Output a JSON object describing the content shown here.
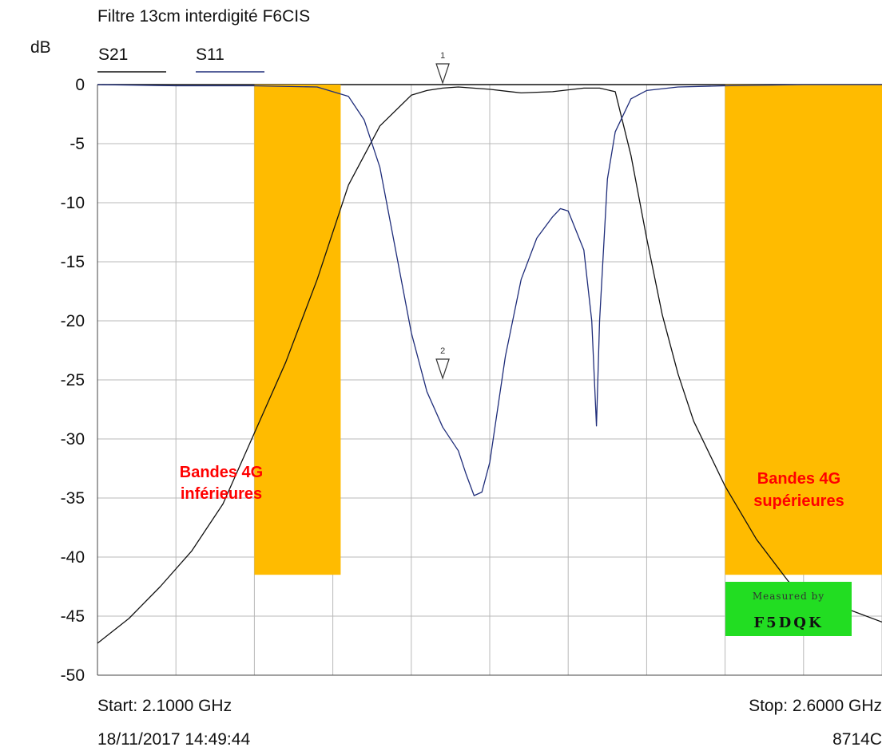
{
  "chart_data": {
    "type": "line",
    "title": "Filtre 13cm interdigité F6CIS",
    "ylabel": "dB",
    "xlabel": "",
    "xlim": [
      2.1,
      2.6
    ],
    "ylim": [
      -50,
      0
    ],
    "y_ticks": [
      0,
      -5,
      -10,
      -15,
      -20,
      -25,
      -30,
      -35,
      -40,
      -45,
      -50
    ],
    "y_tick_labels": [
      "0",
      "-5",
      "-10",
      "-15",
      "-20",
      "-25",
      "-30",
      "-35",
      "-40",
      "-45",
      "-50"
    ],
    "grid": true,
    "legend_position": "top-left",
    "series": [
      {
        "name": "S21",
        "color": "#111111",
        "x": [
          2.1,
          2.12,
          2.14,
          2.16,
          2.18,
          2.2,
          2.22,
          2.24,
          2.26,
          2.28,
          2.3,
          2.31,
          2.32,
          2.33,
          2.35,
          2.37,
          2.39,
          2.41,
          2.42,
          2.43,
          2.44,
          2.45,
          2.46,
          2.47,
          2.48,
          2.5,
          2.52,
          2.54,
          2.55,
          2.56,
          2.58,
          2.6
        ],
        "y": [
          -47.3,
          -45.2,
          -42.5,
          -39.5,
          -35.5,
          -29.5,
          -23.5,
          -16.5,
          -8.5,
          -3.5,
          -0.9,
          -0.5,
          -0.3,
          -0.2,
          -0.4,
          -0.7,
          -0.6,
          -0.3,
          -0.3,
          -0.6,
          -6.0,
          -13.0,
          -19.5,
          -24.5,
          -28.5,
          -34.0,
          -38.5,
          -42.0,
          -43.5,
          -44.5,
          -44.5,
          -45.5
        ]
      },
      {
        "name": "S11",
        "color": "#1f2d7a",
        "x": [
          2.1,
          2.15,
          2.2,
          2.24,
          2.26,
          2.27,
          2.28,
          2.29,
          2.3,
          2.31,
          2.32,
          2.33,
          2.335,
          2.34,
          2.345,
          2.35,
          2.36,
          2.37,
          2.38,
          2.39,
          2.395,
          2.4,
          2.41,
          2.415,
          2.418,
          2.42,
          2.425,
          2.43,
          2.44,
          2.45,
          2.47,
          2.5,
          2.55,
          2.6
        ],
        "y": [
          0,
          -0.1,
          -0.1,
          -0.2,
          -1.0,
          -3.0,
          -7.0,
          -14.0,
          -21.0,
          -26.0,
          -29.0,
          -31.0,
          -33.0,
          -34.8,
          -34.5,
          -32.0,
          -23.0,
          -16.5,
          -13.0,
          -11.2,
          -10.5,
          -10.7,
          -14.0,
          -20.0,
          -28.9,
          -20.0,
          -8.0,
          -4.0,
          -1.2,
          -0.5,
          -0.2,
          -0.1,
          0,
          0
        ]
      }
    ],
    "markers": [
      {
        "label": "1",
        "x": 2.32,
        "y": 0
      },
      {
        "label": "2",
        "x": 2.32,
        "y": -25
      }
    ],
    "bands": [
      {
        "x0": 2.2,
        "x1": 2.255,
        "y0": 0,
        "y1": -41.5,
        "color": "#ffbb00",
        "label_lines": [
          "Bandes 4G",
          "inférieures"
        ]
      },
      {
        "x0": 2.5,
        "x1": 2.6,
        "y0": 0,
        "y1": -41.5,
        "color": "#ffbb00",
        "label_lines": [
          "Bandes 4G",
          "supérieures"
        ]
      }
    ],
    "start_label": "Start: 2.1000 GHz",
    "stop_label": "Stop: 2.6000 GHz",
    "timestamp": "18/11/2017 14:49:44",
    "instrument": "8714C"
  },
  "stamp": {
    "line1": "Measured by",
    "line2": "F5DQK",
    "color": "#22dd22"
  }
}
